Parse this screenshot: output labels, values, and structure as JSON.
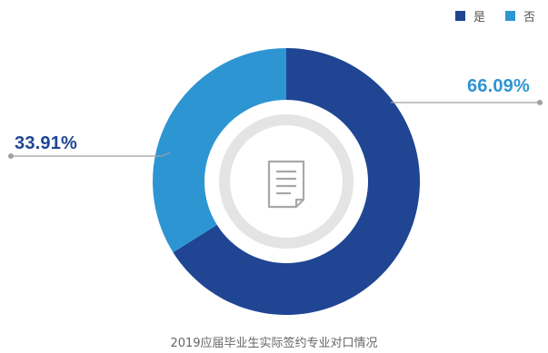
{
  "chart_data": {
    "type": "pie",
    "categories": [
      "是",
      "否"
    ],
    "values": [
      66.09,
      33.91
    ],
    "value_labels": [
      "66.09%",
      "33.91%"
    ],
    "colors": [
      "#1f4593",
      "#2e95d3"
    ],
    "label_colors": [
      "#2e95d3",
      "#1f4593"
    ],
    "legend": {
      "entries": [
        "是",
        "否"
      ],
      "placement": "top-right"
    },
    "center_icon": "document-icon",
    "caption": "2019应届毕业生实际签约专业对口情况"
  }
}
